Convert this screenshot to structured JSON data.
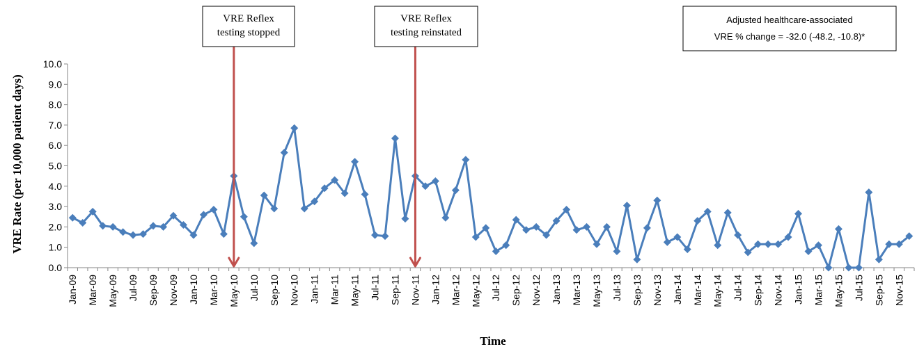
{
  "chart_data": {
    "type": "line",
    "xlabel": "Time",
    "ylabel": "VRE Rate (per 10,000 patient days)",
    "ylim": [
      0,
      10
    ],
    "yticks": [
      "0.0",
      "1.0",
      "2.0",
      "3.0",
      "4.0",
      "5.0",
      "6.0",
      "7.0",
      "8.0",
      "9.0",
      "10.0"
    ],
    "grid": false,
    "series_color": "#4a7ebb",
    "arrow_color": "#c0504d",
    "x": [
      "Jan-09",
      "Feb-09",
      "Mar-09",
      "Apr-09",
      "May-09",
      "Jun-09",
      "Jul-09",
      "Aug-09",
      "Sep-09",
      "Oct-09",
      "Nov-09",
      "Dec-09",
      "Jan-10",
      "Feb-10",
      "Mar-10",
      "Apr-10",
      "May-10",
      "Jun-10",
      "Jul-10",
      "Aug-10",
      "Sep-10",
      "Oct-10",
      "Nov-10",
      "Dec-10",
      "Jan-11",
      "Feb-11",
      "Mar-11",
      "Apr-11",
      "May-11",
      "Jun-11",
      "Jul-11",
      "Aug-11",
      "Sep-11",
      "Oct-11",
      "Nov-11",
      "Dec-11",
      "Jan-12",
      "Feb-12",
      "Mar-12",
      "Apr-12",
      "May-12",
      "Jun-12",
      "Jul-12",
      "Aug-12",
      "Sep-12",
      "Oct-12",
      "Nov-12",
      "Dec-12",
      "Jan-13",
      "Feb-13",
      "Mar-13",
      "Apr-13",
      "May-13",
      "Jun-13",
      "Jul-13",
      "Aug-13",
      "Sep-13",
      "Oct-13",
      "Nov-13",
      "Dec-13",
      "Jan-14",
      "Feb-14",
      "Mar-14",
      "Apr-14",
      "May-14",
      "Jun-14",
      "Jul-14",
      "Aug-14",
      "Sep-14",
      "Oct-14",
      "Nov-14",
      "Dec-14",
      "Jan-15",
      "Feb-15",
      "Mar-15",
      "Apr-15",
      "May-15",
      "Jun-15",
      "Jul-15",
      "Aug-15",
      "Sep-15",
      "Oct-15",
      "Nov-15",
      "Dec-15"
    ],
    "xtick_labels": [
      "Jan-09",
      "Mar-09",
      "May-09",
      "Jul-09",
      "Sep-09",
      "Nov-09",
      "Jan-10",
      "Mar-10",
      "May-10",
      "Jul-10",
      "Sep-10",
      "Nov-10",
      "Jan-11",
      "Mar-11",
      "May-11",
      "Jul-11",
      "Sep-11",
      "Nov-11",
      "Jan-12",
      "Mar-12",
      "May-12",
      "Jul-12",
      "Sep-12",
      "Nov-12",
      "Jan-13",
      "Mar-13",
      "May-13",
      "Jul-13",
      "Sep-13",
      "Nov-13",
      "Jan-14",
      "Mar-14",
      "May-14",
      "Jul-14",
      "Sep-14",
      "Nov-14",
      "Jan-15",
      "Mar-15",
      "May-15",
      "Jul-15",
      "Sep-15",
      "Nov-15"
    ],
    "values": [
      2.45,
      2.2,
      2.75,
      2.05,
      2.0,
      1.75,
      1.6,
      1.65,
      2.05,
      2.0,
      2.55,
      2.1,
      1.6,
      2.6,
      2.85,
      1.65,
      4.5,
      2.5,
      1.2,
      3.55,
      2.9,
      5.65,
      6.85,
      2.9,
      3.25,
      3.9,
      4.3,
      3.65,
      5.2,
      3.6,
      1.6,
      1.55,
      6.35,
      2.4,
      4.5,
      4.0,
      4.25,
      2.45,
      3.8,
      5.3,
      1.5,
      1.95,
      0.8,
      1.1,
      2.35,
      1.85,
      2.0,
      1.6,
      2.3,
      2.85,
      1.85,
      2.0,
      1.15,
      2.0,
      0.8,
      3.05,
      0.4,
      1.95,
      3.3,
      1.25,
      1.5,
      0.9,
      2.3,
      2.75,
      1.1,
      2.7,
      1.6,
      0.75,
      1.15,
      1.15,
      1.15,
      1.5,
      2.65,
      0.8,
      1.1,
      0.0,
      1.9,
      0.0,
      0.0,
      3.7,
      0.4,
      1.15,
      1.15,
      1.55
    ],
    "annotations": [
      {
        "lines": [
          "VRE Reflex",
          "testing stopped"
        ],
        "arrow_at": "May-10"
      },
      {
        "lines": [
          "VRE Reflex",
          "testing reinstated"
        ],
        "arrow_at": "Nov-11"
      }
    ],
    "result_box": {
      "line1": "Adjusted healthcare-associated",
      "line2": "VRE % change = -32.0 (-48.2, -10.8)*"
    }
  }
}
